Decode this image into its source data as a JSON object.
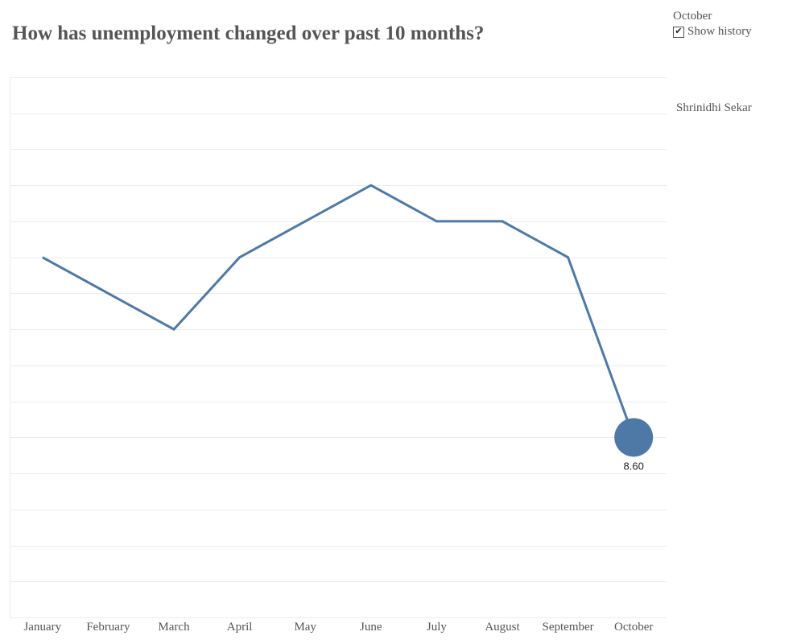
{
  "header": {
    "title": "How has unemployment changed over past 10 months?"
  },
  "controls": {
    "month_value": "October",
    "show_history_label": "Show history",
    "show_history_checked": true,
    "check_glyph": "✔"
  },
  "author": "Shrinidhi Sekar",
  "colors": {
    "line": "#4e79a7",
    "grid": "#ececec",
    "text": "#555555"
  },
  "chart_data": {
    "type": "line",
    "title": "How has unemployment changed over past 10 months?",
    "categories": [
      "January",
      "February",
      "March",
      "April",
      "May",
      "June",
      "July",
      "August",
      "September",
      "October"
    ],
    "values": [
      9.6,
      9.4,
      9.2,
      9.6,
      9.8,
      10.0,
      9.8,
      9.8,
      9.6,
      8.6
    ],
    "highlight": {
      "category": "October",
      "value": 8.6,
      "label": "8.60"
    },
    "ylim": [
      7.6,
      10.6
    ],
    "ytick_step": 0.2,
    "grid": true,
    "yaxis_labels_shown": false,
    "xlabel": "",
    "ylabel": ""
  }
}
